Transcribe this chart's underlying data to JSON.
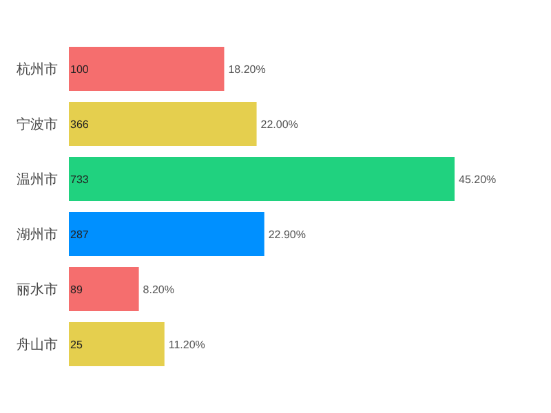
{
  "chart_data": {
    "type": "bar",
    "orientation": "horizontal",
    "categories": [
      "杭州市",
      "宁波市",
      "温州市",
      "湖州市",
      "丽水市",
      "舟山市"
    ],
    "values": [
      18.2,
      22.0,
      45.2,
      22.9,
      8.2,
      11.2
    ],
    "colors": [
      "#f56e6e",
      "#e5cf4e",
      "#20d27f",
      "#0090ff",
      "#f56e6e",
      "#e5cf4e"
    ],
    "value_labels": [
      "18.20%",
      "22.00%",
      "45.20%",
      "22.90%",
      "8.20%",
      "11.20%"
    ],
    "annotations": [
      {
        "text": "100",
        "y": "杭州市"
      },
      {
        "text": "366",
        "y": "宁波市"
      },
      {
        "text": "733",
        "y": "温州市"
      },
      {
        "text": "287",
        "y": "湖州市"
      },
      {
        "text": "89",
        "y": "丽水市"
      },
      {
        "text": "25",
        "y": "舟山市"
      }
    ]
  }
}
